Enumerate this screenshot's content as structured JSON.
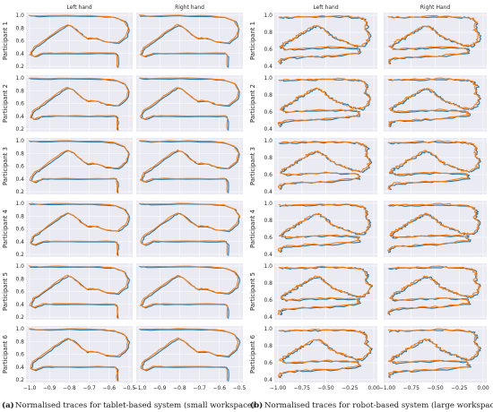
{
  "colors": {
    "series_blue": "#1f77b4",
    "series_orange": "#ff7f0e",
    "panel_bg": "#eaeaf2"
  },
  "figures": [
    {
      "caption_tag": "(a)",
      "caption_text": "Normalised traces for tablet-based system (small workspace)",
      "column_titles": [
        "Left hand",
        "Right hand"
      ],
      "row_labels": [
        "Participant 1",
        "Participant 2",
        "Participant 3",
        "Participant 4",
        "Participant 5",
        "Participant 6"
      ],
      "y_ticks": [
        "1.0",
        "0.8",
        "0.6",
        "0.4",
        "0.2"
      ],
      "x_ticks": [
        "−1.0",
        "−0.9",
        "−0.8",
        "−0.7",
        "−0.6",
        "−0.5"
      ]
    },
    {
      "caption_tag": "(b)",
      "caption_text": "Normalised traces for robot-based system (large workspace)",
      "column_titles": [
        "Left hand",
        "Right Hand"
      ],
      "row_labels": [
        "Participant 1",
        "Participant 2",
        "Participant 3",
        "Participant 4",
        "Participant 5",
        "Participant 6"
      ],
      "y_ticks": [
        "1.0",
        "0.8",
        "0.6",
        "0.4"
      ],
      "x_ticks": [
        "−1.00",
        "−0.75",
        "−0.50",
        "−0.25",
        "0.00"
      ]
    }
  ],
  "chart_data": [
    {
      "type": "line",
      "title": "Normalised traces for tablet-based system (small workspace)",
      "panels": "6 participants × 2 hands (Left hand, Right hand), shared axes",
      "xlim": [
        -1.02,
        -0.48
      ],
      "ylim": [
        0.18,
        1.02
      ],
      "grid": true,
      "series": [
        {
          "color": "#1f77b4"
        },
        {
          "color": "#ff7f0e"
        }
      ],
      "trace_shape_y_levels": {
        "top": 0.97,
        "loop_top": 0.8,
        "middle": 0.6,
        "lower": 0.42,
        "bottom": 0.28
      },
      "trace_shape_x_range": [
        -1.0,
        -0.52
      ]
    },
    {
      "type": "line",
      "title": "Normalised traces for robot-based system (large workspace)",
      "panels": "6 participants × 2 hands (Left hand, Right Hand), shared axes",
      "xlim": [
        -1.08,
        0.08
      ],
      "ylim": [
        0.38,
        1.02
      ],
      "grid": true,
      "series": [
        {
          "color": "#1f77b4"
        },
        {
          "color": "#ff7f0e"
        }
      ],
      "trace_shape_y_levels": {
        "top": 0.97,
        "loop_top": 0.85,
        "middle": 0.65,
        "lower": 0.5,
        "bottom": 0.42
      },
      "trace_shape_x_range": [
        -1.0,
        -0.03
      ]
    }
  ]
}
